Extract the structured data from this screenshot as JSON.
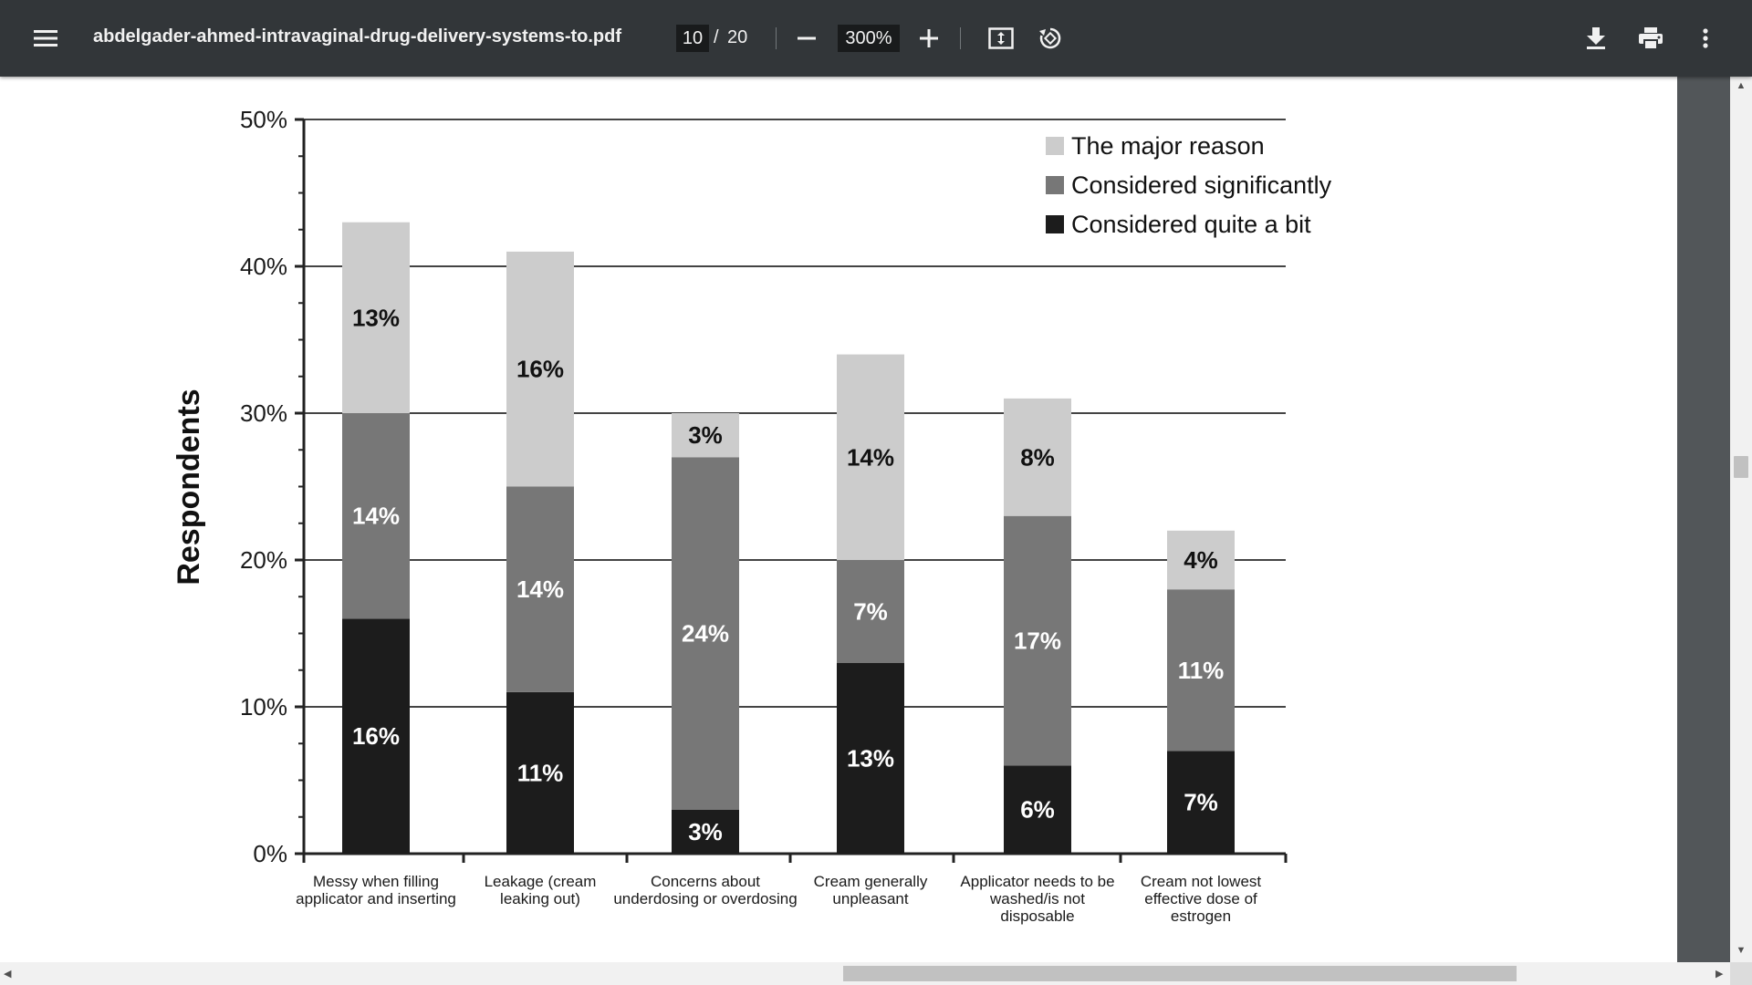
{
  "toolbar": {
    "title": "abdelgader-ahmed-intravaginal-drug-delivery-systems-to.pdf",
    "current_page": "10",
    "page_separator": "/",
    "total_pages": "20",
    "zoom": "300%",
    "icons": [
      "menu-icon",
      "minus-icon",
      "plus-icon",
      "fit-page-icon",
      "rotate-icon",
      "download-icon",
      "print-icon",
      "more-vert-icon"
    ]
  },
  "colors": {
    "toolbar_bg": "#323639",
    "series_major": "#cccccc",
    "series_significant": "#777777",
    "series_quite": "#1c1c1c"
  },
  "chart_data": {
    "type": "bar",
    "stacked": true,
    "ylabel": "Respondents",
    "xlabel": "",
    "ylim": [
      0,
      50
    ],
    "yticks": [
      "0%",
      "10%",
      "20%",
      "30%",
      "40%",
      "50%"
    ],
    "grid": true,
    "legend_position": "top-right",
    "categories": [
      [
        "Messy when filling",
        "applicator and inserting"
      ],
      [
        "Leakage (cream",
        "leaking out)"
      ],
      [
        "Concerns about",
        "underdosing or overdosing"
      ],
      [
        "Cream generally",
        "unpleasant"
      ],
      [
        "Applicator needs to be",
        "washed/is not",
        "disposable"
      ],
      [
        "Cream not lowest",
        "effective dose of",
        "estrogen"
      ]
    ],
    "series": [
      {
        "name": "Considered quite a bit",
        "values": [
          16,
          11,
          3,
          13,
          6,
          7
        ],
        "labels": [
          "16%",
          "11%",
          "3%",
          "13%",
          "6%",
          "7%"
        ]
      },
      {
        "name": "Considered significantly",
        "values": [
          14,
          14,
          24,
          7,
          17,
          11
        ],
        "labels": [
          "14%",
          "14%",
          "24%",
          "7%",
          "17%",
          "11%"
        ]
      },
      {
        "name": "The major reason",
        "values": [
          13,
          16,
          3,
          14,
          8,
          4
        ],
        "labels": [
          "13%",
          "16%",
          "3%",
          "14%",
          "8%",
          "4%"
        ]
      }
    ],
    "legend_order": [
      "The major reason",
      "Considered significantly",
      "Considered quite a bit"
    ]
  }
}
